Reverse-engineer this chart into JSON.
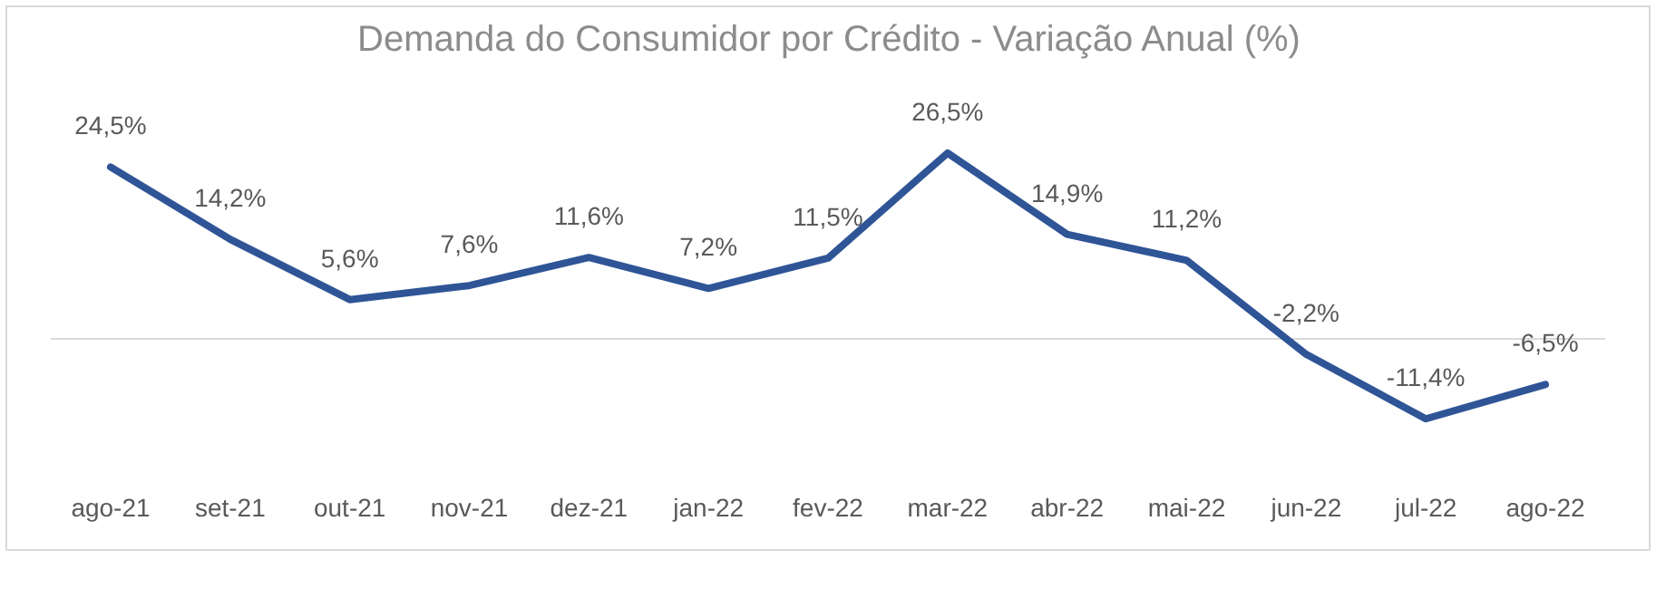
{
  "chart_data": {
    "type": "line",
    "title": "Demanda do Consumidor por Crédito - Variação Anual (%)",
    "categories": [
      "ago-21",
      "set-21",
      "out-21",
      "nov-21",
      "dez-21",
      "jan-22",
      "fev-22",
      "mar-22",
      "abr-22",
      "mai-22",
      "jun-22",
      "jul-22",
      "ago-22"
    ],
    "series": [
      {
        "color": "#2f5597",
        "values": [
          24.5,
          14.2,
          5.6,
          7.6,
          11.6,
          7.2,
          11.5,
          26.5,
          14.9,
          11.2,
          -2.2,
          -11.4,
          -6.5
        ],
        "value_labels": [
          "24,5%",
          "14,2%",
          "5,6%",
          "7,6%",
          "11,6%",
          "7,2%",
          "11,5%",
          "26,5%",
          "14,9%",
          "11,2%",
          "-2,2%",
          "-11,4%",
          "-6,5%"
        ]
      }
    ],
    "tick_labels": "x",
    "line_style": "solid"
  }
}
